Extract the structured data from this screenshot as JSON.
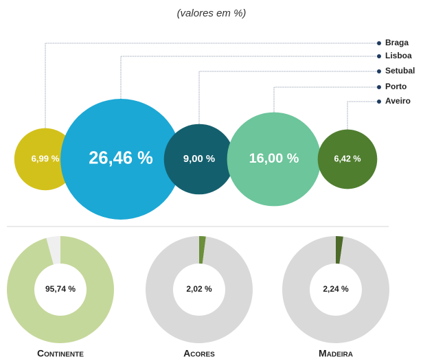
{
  "chart_data": [
    {
      "type": "bubble",
      "subtitle": "(valores em %)",
      "categories": [
        "Braga",
        "Lisboa",
        "Setubal",
        "Porto",
        "Aveiro"
      ],
      "values": [
        6.99,
        26.46,
        9.0,
        16.0,
        6.42
      ],
      "value_labels": [
        "6,99 %",
        "26,46 %",
        "9,00 %",
        "16,00 %",
        "6,42 %"
      ],
      "colors": [
        "#d3c11b",
        "#1ba8d5",
        "#145f6d",
        "#6cc59b",
        "#4f7e2f"
      ]
    },
    {
      "type": "pie",
      "title": "Continente",
      "values": [
        95.74,
        4.26
      ],
      "value_labels": [
        "95,74 %",
        null
      ],
      "colors": [
        "#c5d89b",
        "#efefef"
      ]
    },
    {
      "type": "pie",
      "title": "Acores",
      "values": [
        2.02,
        97.98
      ],
      "value_labels": [
        "2,02 %",
        null
      ],
      "colors": [
        "#6b8f3a",
        "#d9d9d9"
      ]
    },
    {
      "type": "pie",
      "title": "Madeira",
      "values": [
        2.24,
        97.76
      ],
      "value_labels": [
        "2,24 %",
        null
      ],
      "colors": [
        "#4d6a29",
        "#d9d9d9"
      ]
    }
  ]
}
